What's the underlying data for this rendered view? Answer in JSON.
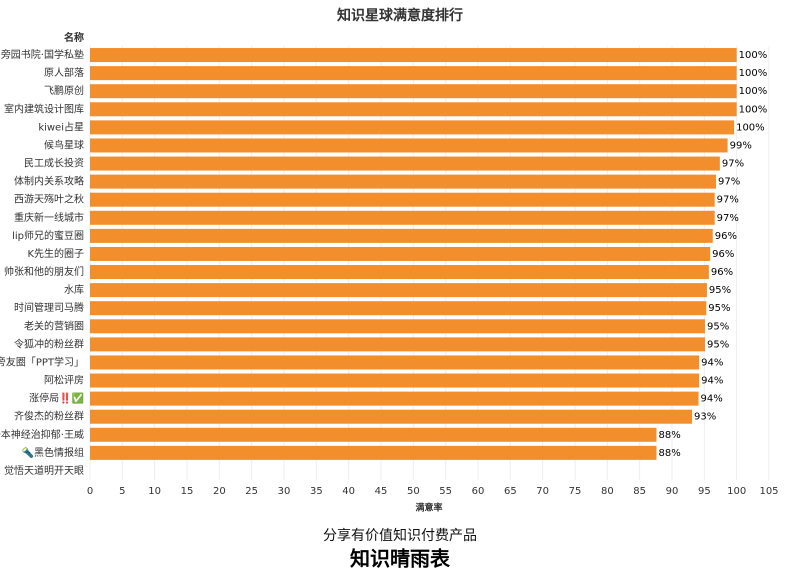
{
  "chart_data": {
    "type": "bar",
    "orientation": "horizontal",
    "title": "知识星球满意度排行",
    "y_axis_title": "名称",
    "x_axis_title": "满意率",
    "categories": [
      "旁园书院·国学私塾",
      "原人部落",
      "飞鹏原创",
      "室内建筑设计图库",
      "kiwei占星",
      "候鸟星球",
      "民工成长投资",
      "体制内关系攻略",
      "西游天殇叶之秋",
      "重庆新一线城市",
      "lip师兄的蜜豆圈",
      "K先生的圈子",
      "帅张和他的朋友们",
      "水库",
      "时间管理司马腾",
      "老关的营销圈",
      "令狐冲的粉丝群",
      "旁友圈「PPT学习」",
      "阿松评房",
      "涨停局‼️✅",
      "齐俊杰的粉丝群",
      "一本神经治抑郁·王威",
      "🔦黑色情报组",
      "觉悟天道明开天眼"
    ],
    "values": [
      100,
      100,
      100,
      100,
      99.6,
      98.6,
      97.4,
      96.8,
      96.6,
      96.6,
      96.3,
      95.9,
      95.7,
      95.4,
      95.3,
      95.1,
      95.1,
      94.2,
      94.2,
      94.1,
      93.1,
      87.6,
      87.6,
      null
    ],
    "value_labels": [
      "100%",
      "100%",
      "100%",
      "100%",
      "100%",
      "99%",
      "97%",
      "97%",
      "97%",
      "97%",
      "96%",
      "96%",
      "96%",
      "95%",
      "95%",
      "95%",
      "95%",
      "94%",
      "94%",
      "94%",
      "93%",
      "88%",
      "88%",
      null
    ],
    "color": "#f28e2b",
    "xlim": [
      0,
      105
    ],
    "xticks": [
      0,
      5,
      10,
      15,
      20,
      25,
      30,
      35,
      40,
      45,
      50,
      55,
      60,
      65,
      70,
      75,
      80,
      85,
      90,
      95,
      100,
      105
    ],
    "grid": true
  },
  "footer": {
    "subtitle": "分享有价值知识付费产品",
    "brand": "知识晴雨表"
  }
}
